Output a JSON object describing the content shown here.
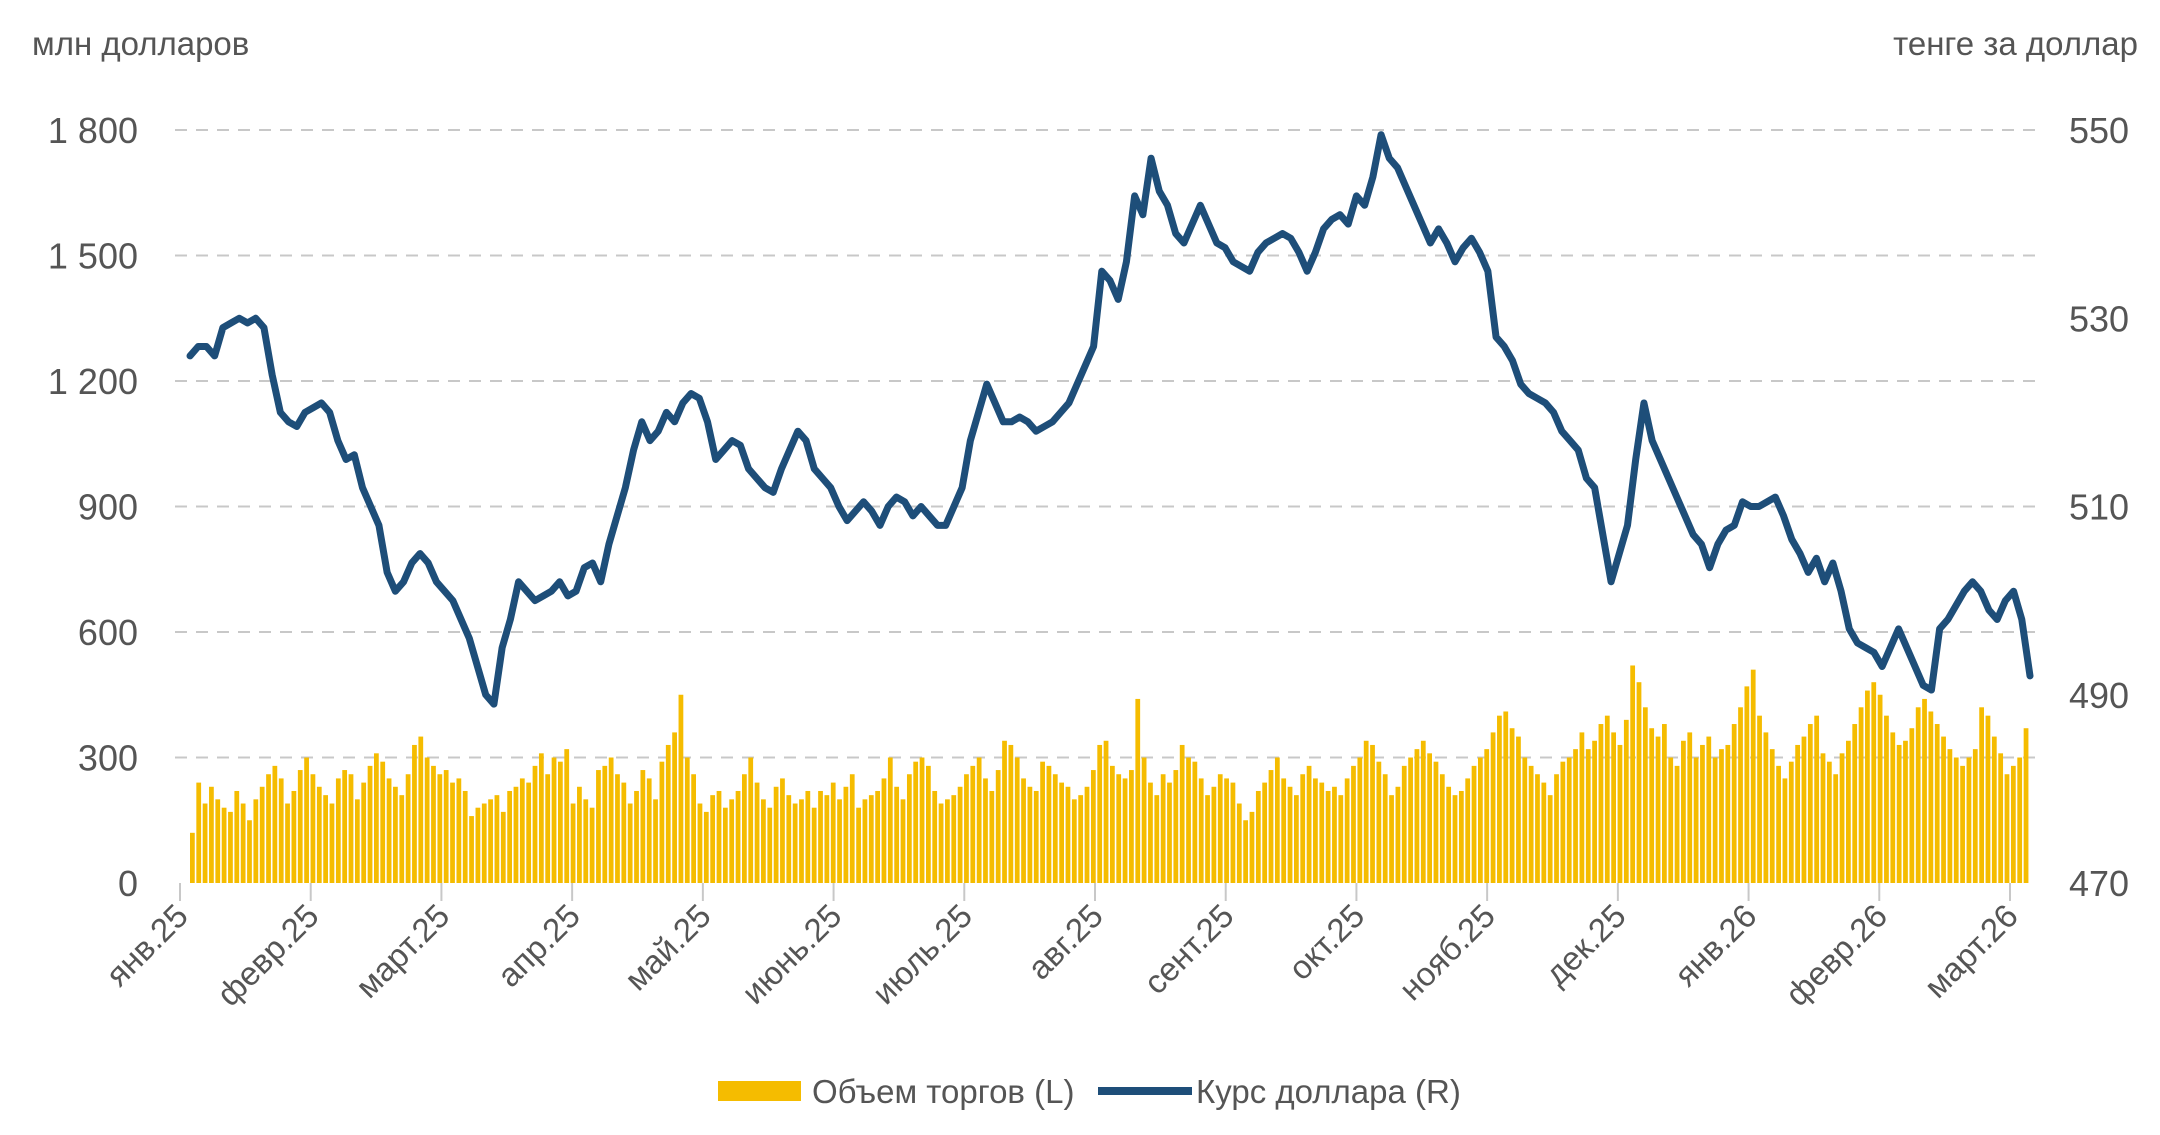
{
  "chart_data": {
    "type": "bar+line",
    "title": "",
    "left_axis": {
      "title": "млн долларов",
      "range": [
        0,
        1800
      ],
      "ticks": [
        0,
        300,
        600,
        900,
        1200,
        1500,
        1800
      ],
      "tick_labels": [
        "0",
        "300",
        "600",
        "900",
        "1 200",
        "1 500",
        "1 800"
      ]
    },
    "right_axis": {
      "title": "тенге за доллар",
      "range": [
        470,
        550
      ],
      "ticks": [
        470,
        490,
        510,
        530,
        550
      ],
      "tick_labels": [
        "470",
        "490",
        "510",
        "530",
        "550"
      ]
    },
    "x_labels": [
      "янв.25",
      "февр.25",
      "март.25",
      "апр.25",
      "май.25",
      "июнь.25",
      "июль.25",
      "авг.25",
      "сент.25",
      "окт.25",
      "нояб.25",
      "дек.25",
      "янв.26",
      "февр.26",
      "март.26"
    ],
    "series": [
      {
        "name": "Объем торгов (L)",
        "type": "bar",
        "axis": "left",
        "color": "#f5bc00",
        "monthly_volume_samples": [
          [
            120,
            240,
            190,
            230,
            200,
            180,
            170,
            220,
            190,
            150,
            200,
            230,
            260,
            280,
            250,
            190,
            220,
            270,
            300,
            260
          ],
          [
            230,
            210,
            190,
            250,
            270,
            260,
            200,
            240,
            280,
            310,
            290,
            250,
            230,
            210,
            260,
            330,
            350,
            300,
            280,
            260
          ],
          [
            270,
            240,
            250,
            220,
            160,
            180,
            190,
            200,
            210,
            170,
            220,
            230,
            250,
            240,
            280,
            310,
            260,
            300,
            290,
            320
          ],
          [
            190,
            230,
            200,
            180,
            270,
            280,
            300,
            260,
            240,
            190,
            220,
            270,
            250,
            200,
            290,
            330,
            360,
            450,
            300,
            260
          ],
          [
            190,
            170,
            210,
            220,
            180,
            200,
            220,
            260,
            300,
            240,
            200,
            180,
            230,
            250,
            210,
            190,
            200,
            220,
            180,
            220
          ],
          [
            210,
            240,
            200,
            230,
            260,
            180,
            200,
            210,
            220,
            250,
            300,
            230,
            200,
            260,
            290,
            300,
            280,
            220,
            190,
            200
          ],
          [
            210,
            230,
            260,
            280,
            300,
            250,
            220,
            270,
            340,
            330,
            300,
            250,
            230,
            220,
            290,
            280,
            260,
            240,
            230,
            200
          ],
          [
            210,
            230,
            270,
            330,
            340,
            280,
            260,
            250,
            270,
            440,
            300,
            240,
            210,
            260,
            240,
            270,
            330,
            300,
            290,
            250
          ],
          [
            210,
            230,
            260,
            250,
            240,
            190,
            150,
            170,
            220,
            240,
            270,
            300,
            250,
            230,
            210,
            260,
            280,
            250,
            240,
            220
          ],
          [
            230,
            210,
            250,
            280,
            300,
            340,
            330,
            290,
            260,
            210,
            230,
            280,
            300,
            320,
            340,
            310,
            290,
            260,
            230,
            210
          ],
          [
            220,
            250,
            280,
            300,
            320,
            360,
            400,
            410,
            370,
            350,
            300,
            280,
            260,
            240,
            210,
            260,
            290,
            300,
            320,
            360
          ],
          [
            320,
            340,
            380,
            400,
            360,
            330,
            390,
            520,
            480,
            420,
            370,
            350,
            380,
            300,
            280,
            340,
            360,
            300,
            330,
            350
          ],
          [
            300,
            320,
            330,
            380,
            420,
            470,
            510,
            400,
            360,
            320,
            280,
            250,
            290,
            330,
            350,
            380,
            400,
            310,
            290,
            260
          ],
          [
            310,
            340,
            380,
            420,
            460,
            480,
            450,
            400,
            360,
            330,
            340,
            370,
            420,
            440,
            410,
            380,
            350,
            320,
            300,
            280
          ],
          [
            300,
            320,
            420,
            400,
            350,
            310,
            260,
            280,
            300,
            370
          ]
        ]
      },
      {
        "name": "Курс доллара (R)",
        "type": "line",
        "axis": "right",
        "color": "#1e4e79",
        "values": [
          526,
          527,
          527,
          526,
          529,
          529.5,
          530,
          529.5,
          530,
          529,
          524,
          520,
          519,
          518.5,
          520,
          520.5,
          521,
          520,
          517,
          515,
          515.5,
          512,
          510,
          508,
          503,
          501,
          502,
          504,
          505,
          504,
          502,
          501,
          500,
          498,
          496,
          493,
          490,
          489,
          495,
          498,
          502,
          501,
          500,
          500.5,
          501,
          502,
          500.5,
          501,
          503.5,
          504,
          502,
          506,
          509,
          512,
          516,
          519,
          517,
          518,
          520,
          519,
          521,
          522,
          521.5,
          519,
          515,
          516,
          517,
          516.5,
          514,
          513,
          512,
          511.5,
          514,
          516,
          518,
          517,
          514,
          513,
          512,
          510,
          508.5,
          509.5,
          510.5,
          509.5,
          508,
          510,
          511,
          510.5,
          509,
          510,
          509,
          508,
          508,
          510,
          512,
          517,
          520,
          523,
          521,
          519,
          519,
          519.5,
          519,
          518,
          518.5,
          519,
          520,
          521,
          523,
          525,
          527,
          535,
          534,
          532,
          536,
          543,
          541,
          547,
          543.5,
          542,
          539,
          538,
          540,
          542,
          540,
          538,
          537.5,
          536,
          535.5,
          535,
          537,
          538,
          538.5,
          539,
          538.5,
          537,
          535,
          537,
          539.5,
          540.5,
          541,
          540,
          543,
          542,
          545,
          549.5,
          547,
          546,
          544,
          542,
          540,
          538,
          539.5,
          538,
          536,
          537.5,
          538.5,
          537,
          535,
          528,
          527,
          525.5,
          523,
          522,
          521.5,
          521,
          520,
          518,
          517,
          516,
          513,
          512,
          507,
          502,
          505,
          508,
          515,
          521,
          517,
          515,
          513,
          511,
          509,
          507,
          506,
          503.5,
          506,
          507.5,
          508,
          510.5,
          510,
          510,
          510.5,
          511,
          509,
          506.5,
          505,
          503,
          504.5,
          502,
          504,
          501,
          497,
          495.5,
          495,
          494.5,
          493,
          495,
          497,
          495,
          493,
          491,
          490.5,
          497,
          498,
          499.5,
          501,
          502,
          501,
          499,
          498,
          500,
          501,
          498,
          492
        ]
      }
    ],
    "legend": {
      "position": "bottom-center",
      "entries": [
        "Объем торгов (L)",
        "Курс доллара (R)"
      ]
    },
    "grid": true
  }
}
